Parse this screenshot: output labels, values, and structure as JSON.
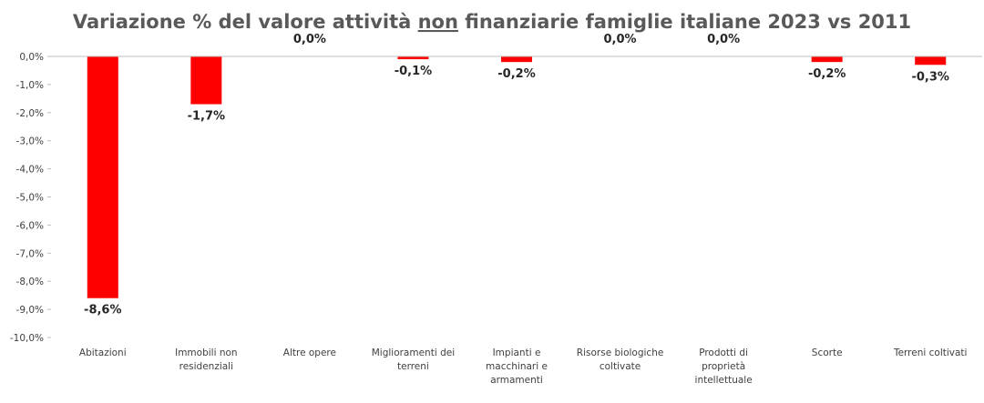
{
  "chart_data": {
    "type": "bar",
    "title": "Variazione % del valore attività non finanziarie famiglie italiane 2023 vs 2011",
    "title_parts": {
      "before": "Variazione % del valore attività ",
      "underlined": "non",
      "after": " finanziarie famiglie italiane 2023 vs 2011"
    },
    "categories": [
      [
        "Abitazioni"
      ],
      [
        "Immobili non",
        "residenziali"
      ],
      [
        "Altre opere"
      ],
      [
        "Miglioramenti dei",
        "terreni"
      ],
      [
        "Impianti e",
        "macchinari e",
        "armamenti"
      ],
      [
        "Risorse biologiche",
        "coltivate"
      ],
      [
        "Prodotti di",
        "proprietà",
        "intellettuale"
      ],
      [
        "Scorte"
      ],
      [
        "Terreni coltivati"
      ]
    ],
    "values": [
      -8.6,
      -1.7,
      0.0,
      -0.1,
      -0.2,
      0.0,
      0.0,
      -0.2,
      -0.3
    ],
    "data_labels": [
      "-8,6%",
      "-1,7%",
      "0,0%",
      "-0,1%",
      "-0,2%",
      "0,0%",
      "0,0%",
      "-0,2%",
      "-0,3%"
    ],
    "y_ticks": [
      0,
      -1,
      -2,
      -3,
      -4,
      -5,
      -6,
      -7,
      -8,
      -9,
      -10
    ],
    "y_tick_labels": [
      "0,0%",
      "-1,0%",
      "-2,0%",
      "-3,0%",
      "-4,0%",
      "-5,0%",
      "-6,0%",
      "-7,0%",
      "-8,0%",
      "-9,0%",
      "-10,0%"
    ],
    "ylim": [
      -10,
      0
    ],
    "grid": false,
    "legend": "none",
    "xlabel": "",
    "ylabel": "",
    "colors": {
      "bar": "#ff0000",
      "axis": "#bfbfbf",
      "title": "#595959"
    }
  }
}
